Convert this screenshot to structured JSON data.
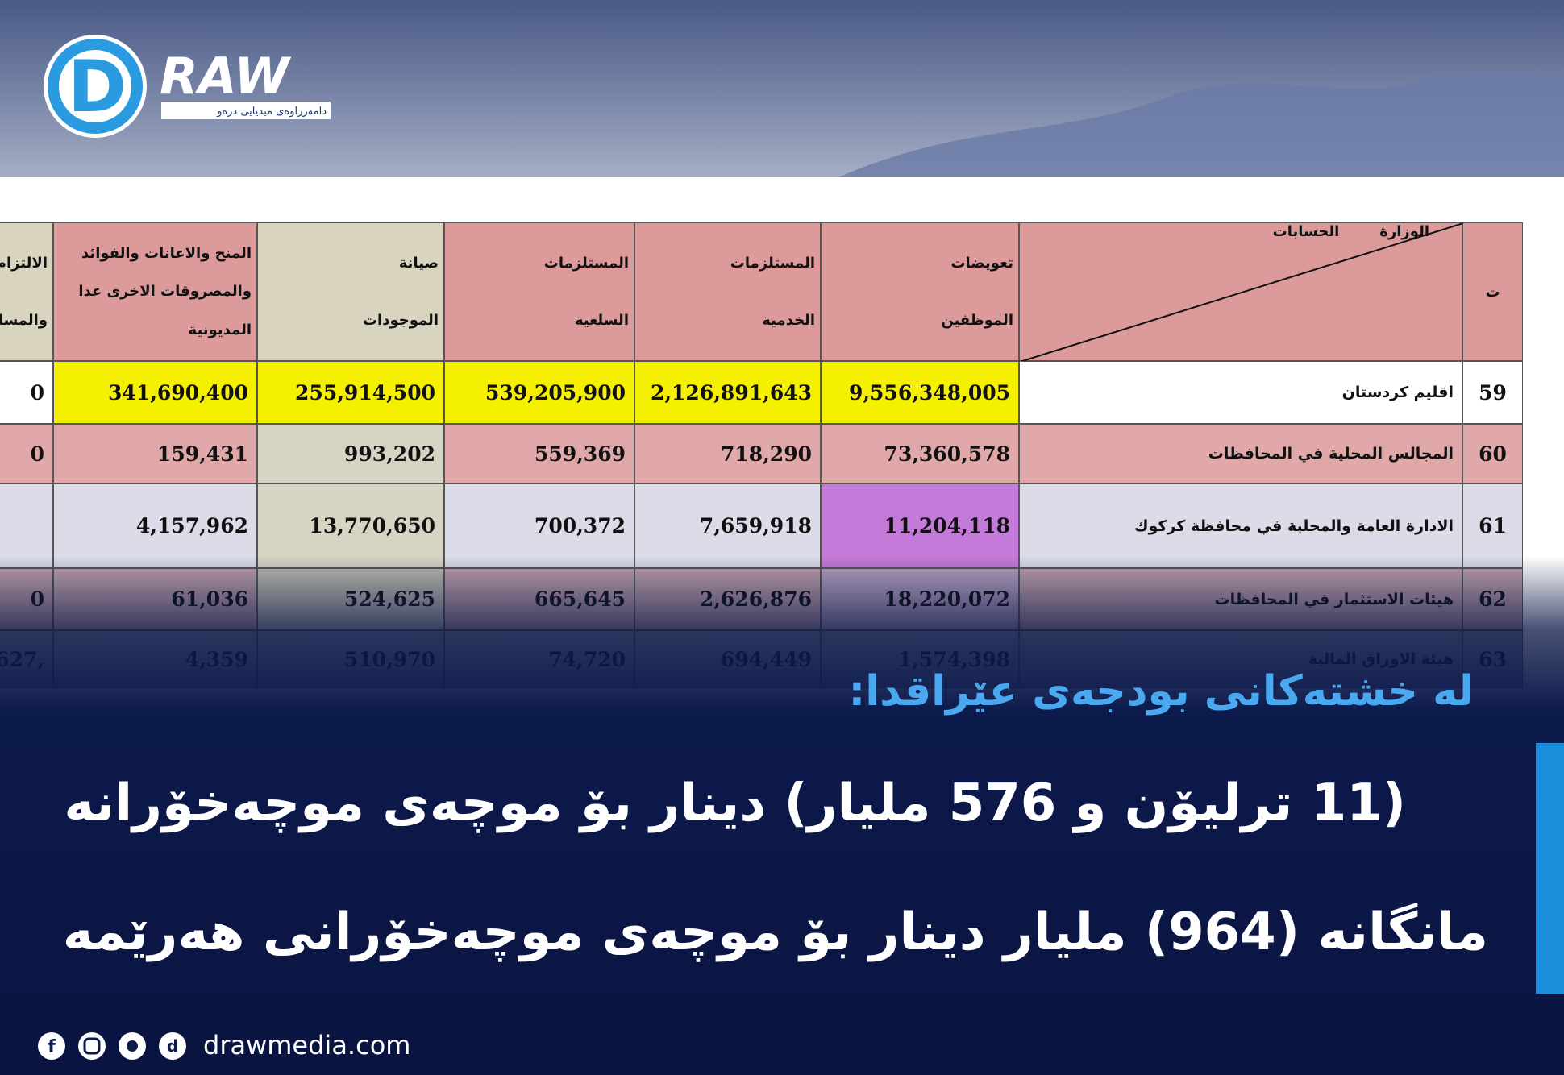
{
  "logo": {
    "name": "RAW",
    "tagline": "دامەزراوەی میدیایی درەو"
  },
  "table": {
    "headers": [
      [
        "ت"
      ],
      [
        "الوزارة",
        "الحسابات"
      ],
      [
        "تعويضات",
        "الموظفين"
      ],
      [
        "المستلزمات",
        "الخدمية"
      ],
      [
        "المستلزمات",
        "السلعية"
      ],
      [
        "صيانة",
        "الموجودات"
      ],
      [
        "المنح والاعانات والفوائد",
        "والمصروقات الاخرى عدا",
        "المديونية"
      ],
      [
        "الالتزام",
        "والمسا"
      ]
    ],
    "rows": [
      [
        "59",
        "اقليم كردستان",
        "9,556,348,005",
        "2,126,891,643",
        "539,205,900",
        "255,914,500",
        "341,690,400",
        "0"
      ],
      [
        "60",
        "المجالس المحلية في المحافظات",
        "73,360,578",
        "718,290",
        "559,369",
        "993,202",
        "159,431",
        "0"
      ],
      [
        "61",
        "الادارة العامة والمحلية في محافظة كركوك",
        "11,204,118",
        "7,659,918",
        "700,372",
        "13,770,650",
        "4,157,962",
        null
      ],
      [
        "62",
        "هيئات الاستثمار في المحافظات",
        "18,220,072",
        "2,626,876",
        "665,645",
        "524,625",
        "61,036",
        "0"
      ],
      [
        "63",
        "هيئة الاوراق المالية",
        "1,574,398",
        "694,449",
        "74,720",
        "510,970",
        "4,359",
        ",627"
      ]
    ]
  },
  "headline": {
    "intro": "له خشته‌كانى بودجه‌ى عێراقدا:",
    "lines": [
      "(11 ترليۆن و 576 مليار) دينار بۆ موچه‌ى موچه‌خۆرانه",
      "مانگانه (964) مليار دينار بۆ موچه‌ى موچه‌خۆرانى هه‌رێمه"
    ]
  },
  "footer": {
    "website": "drawmedia.com"
  }
}
